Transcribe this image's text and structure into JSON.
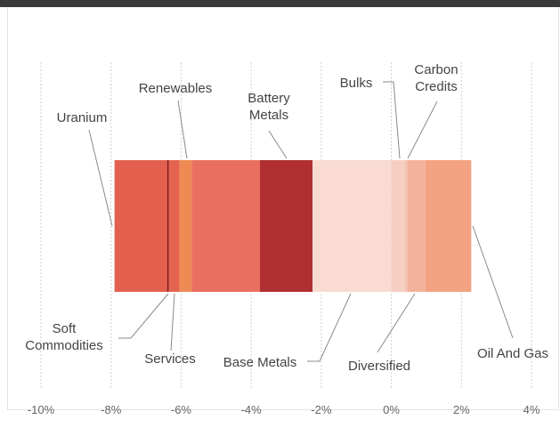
{
  "chart_data": {
    "type": "bar",
    "orientation": "horizontal-stacked",
    "xlim": [
      -10,
      2.8
    ],
    "ticks": [
      -10,
      -8,
      -6,
      -4,
      -2,
      0,
      2,
      4
    ],
    "tick_labels": [
      "-10%",
      "-8%",
      "-6%",
      "-4%",
      "-2%",
      "0%",
      "2%",
      "4%"
    ],
    "grid": true,
    "segments": [
      {
        "name": "Uranium",
        "start": -7.9,
        "end": -6.4,
        "color": "#e35f4e"
      },
      {
        "name": "Soft Commodities",
        "start": -6.4,
        "end": -6.35,
        "color": "#8b1a1a"
      },
      {
        "name": "Services",
        "start": -6.35,
        "end": -6.05,
        "color": "#e56450"
      },
      {
        "name": "Renewables",
        "start": -6.05,
        "end": -5.7,
        "color": "#ef8a54"
      },
      {
        "name": "",
        "start": -5.7,
        "end": -3.75,
        "color": "#e97060"
      },
      {
        "name": "Battery Metals",
        "start": -3.75,
        "end": -2.25,
        "color": "#b03031"
      },
      {
        "name": "Base Metals",
        "start": -2.25,
        "end": 0.0,
        "color": "#f9dbd1"
      },
      {
        "name": "Bulks",
        "start": 0.0,
        "end": 0.4,
        "color": "#f5cfc2"
      },
      {
        "name": "Carbon Credits",
        "start": 0.4,
        "end": 0.47,
        "color": "#f3c0ad"
      },
      {
        "name": "Diversified",
        "start": 0.47,
        "end": 0.97,
        "color": "#f3b29a"
      },
      {
        "name": "Oil And Gas",
        "start": 0.97,
        "end": 2.28,
        "color": "#f3a382"
      }
    ],
    "annotations": [
      {
        "label": "Uranium",
        "lines": [
          "Uranium"
        ]
      },
      {
        "label": "Renewables",
        "lines": [
          "Renewables"
        ]
      },
      {
        "label": "Battery Metals",
        "lines": [
          "Battery",
          "Metals"
        ]
      },
      {
        "label": "Bulks",
        "lines": [
          "Bulks"
        ]
      },
      {
        "label": "Carbon Credits",
        "lines": [
          "Carbon",
          "Credits"
        ]
      },
      {
        "label": "Soft Commodities",
        "lines": [
          "Soft",
          "Commodities"
        ]
      },
      {
        "label": "Services",
        "lines": [
          "Services"
        ]
      },
      {
        "label": "Base Metals",
        "lines": [
          "Base Metals"
        ]
      },
      {
        "label": "Diversified",
        "lines": [
          "Diversified"
        ]
      },
      {
        "label": "Oil And Gas",
        "lines": [
          "Oil And Gas"
        ]
      }
    ]
  }
}
